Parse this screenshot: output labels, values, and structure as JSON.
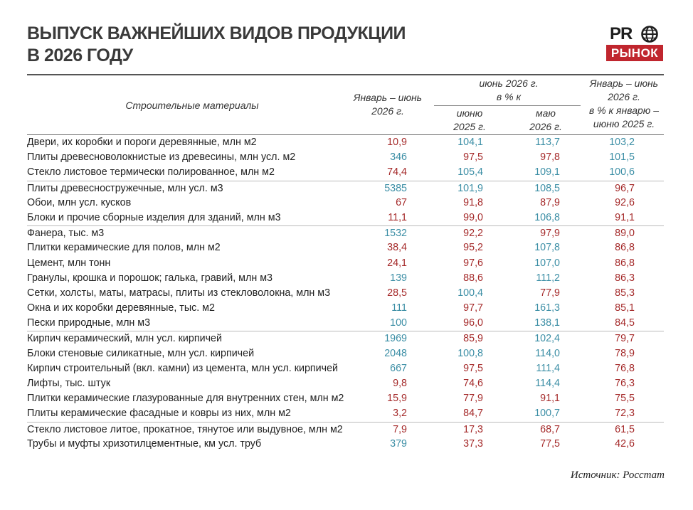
{
  "title": [
    "ВЫПУСК ВАЖНЕЙШИХ ВИДОВ ПРОДУКЦИИ",
    "В 2026 ГОДУ"
  ],
  "logo": {
    "top": "PR",
    "bottom": "РЫНОК"
  },
  "colors": {
    "up": "#3b8ea5",
    "down": "#a52a2a",
    "logo_red": "#c0262e"
  },
  "header": {
    "name_col": "Строительные материалы",
    "value_col": [
      "Январь – июнь",
      "2026 г."
    ],
    "group": [
      "июнь 2026 г.",
      "в % к"
    ],
    "sub1": [
      "июню",
      "2025 г."
    ],
    "sub2": [
      "маю",
      "2026 г."
    ],
    "last_col": [
      "Январь – июнь",
      "2026 г.",
      "в % к январю –",
      "июню 2025 г."
    ]
  },
  "rows": [
    {
      "name": "Двери, их коробки и пороги деревянные, млн м2",
      "value": "10,9",
      "v1": "104,1",
      "v2": "113,7",
      "v3": "103,2"
    },
    {
      "name": "Плиты древесноволокнистые из древесины, млн усл. м2",
      "value": "346",
      "v1": "97,5",
      "v2": "97,8",
      "v3": "101,5"
    },
    {
      "name": "Стекло листовое термически полированное, млн м2",
      "value": "74,4",
      "v1": "105,4",
      "v2": "109,1",
      "v3": "100,6"
    },
    {
      "name": "Плиты древесностружечные, млн усл. м3",
      "value": "5385",
      "v1": "101,9",
      "v2": "108,5",
      "v3": "96,7"
    },
    {
      "name": "Обои, млн усл. кусков",
      "value": "67",
      "v1": "91,8",
      "v2": "87,9",
      "v3": "92,6"
    },
    {
      "name": "Блоки и прочие сборные изделия для зданий, млн м3",
      "value": "11,1",
      "v1": "99,0",
      "v2": "106,8",
      "v3": "91,1"
    },
    {
      "name": "Фанера, тыс. м3",
      "value": "1532",
      "v1": "92,2",
      "v2": "97,9",
      "v3": "89,0"
    },
    {
      "name": "Плитки керамические для полов, млн м2",
      "value": "38,4",
      "v1": "95,2",
      "v2": "107,8",
      "v3": "86,8"
    },
    {
      "name": "Цемент, млн тонн",
      "value": "24,1",
      "v1": "97,6",
      "v2": "107,0",
      "v3": "86,8"
    },
    {
      "name": "Гранулы, крошка и порошок; галька, гравий, млн м3",
      "value": "139",
      "v1": "88,6",
      "v2": "111,2",
      "v3": "86,3"
    },
    {
      "name": "Сетки, холсты, маты, матрасы, плиты из стекловолокна, млн м3",
      "value": "28,5",
      "v1": "100,4",
      "v2": "77,9",
      "v3": "85,3"
    },
    {
      "name": "Окна и их коробки деревянные, тыс. м2",
      "value": "111",
      "v1": "97,7",
      "v2": "161,3",
      "v3": "85,1"
    },
    {
      "name": "Пески природные, млн м3",
      "value": "100",
      "v1": "96,0",
      "v2": "138,1",
      "v3": "84,5"
    },
    {
      "name": "Кирпич керамический, млн усл. кирпичей",
      "value": "1969",
      "v1": "85,9",
      "v2": "102,4",
      "v3": "79,7"
    },
    {
      "name": "Блоки стеновые силикатные, млн усл. кирпичей",
      "value": "2048",
      "v1": "100,8",
      "v2": "114,0",
      "v3": "78,9"
    },
    {
      "name": "Кирпич строительный (вкл. камни) из цемента, млн усл. кирпичей",
      "value": "667",
      "v1": "97,5",
      "v2": "111,4",
      "v3": "76,8"
    },
    {
      "name": "Лифты, тыс. штук",
      "value": "9,8",
      "v1": "74,6",
      "v2": "114,4",
      "v3": "76,3"
    },
    {
      "name": "Плитки керамические глазурованные для внутренних стен, млн м2",
      "value": "15,9",
      "v1": "77,9",
      "v2": "91,1",
      "v3": "75,5"
    },
    {
      "name": "Плиты керамические фасадные и ковры из них, млн м2",
      "value": "3,2",
      "v1": "84,7",
      "v2": "100,7",
      "v3": "72,3"
    },
    {
      "name": "Стекло листовое литое, прокатное, тянутое или выдувное, млн м2",
      "value": "7,9",
      "v1": "17,3",
      "v2": "68,7",
      "v3": "61,5"
    },
    {
      "name": "Трубы и муфты хризотилцементные, км усл. труб",
      "value": "379",
      "v1": "37,3",
      "v2": "77,5",
      "v3": "42,6"
    }
  ],
  "source": "Источник: Росстат"
}
